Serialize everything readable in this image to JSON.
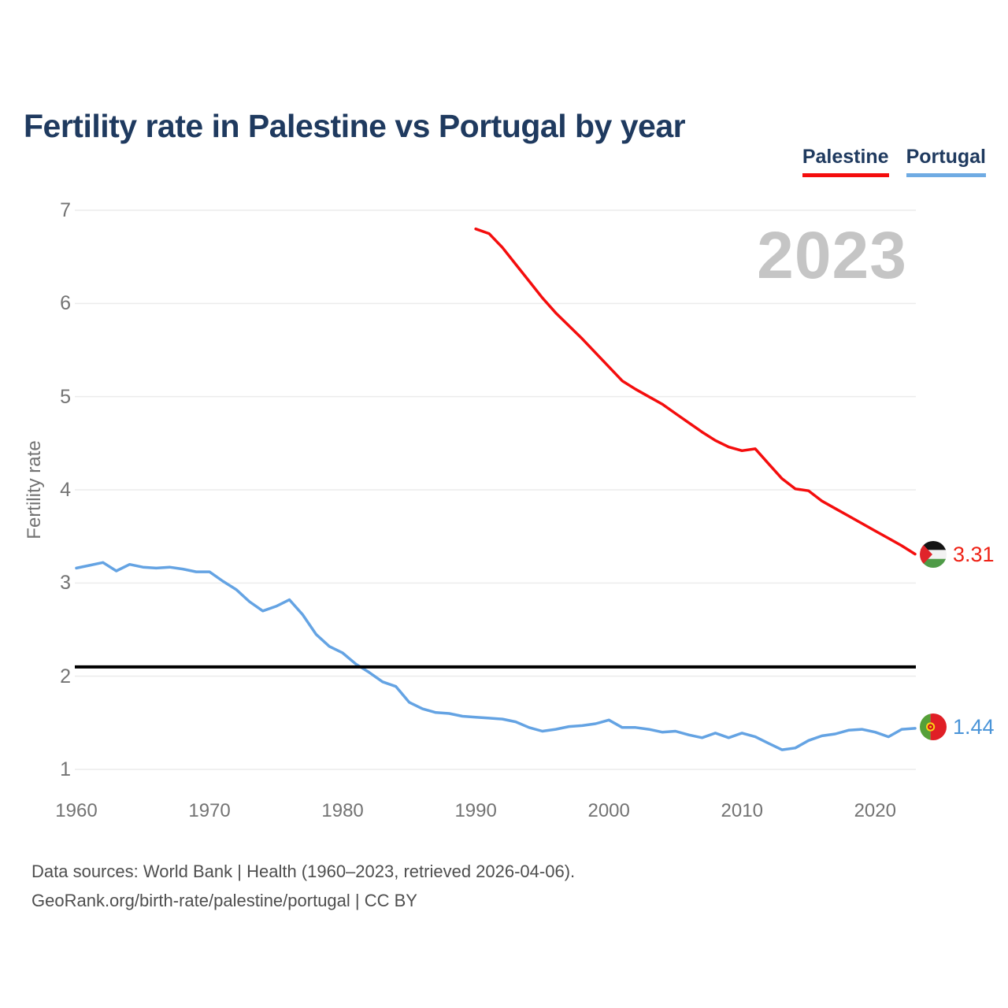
{
  "title": "Fertility rate in Palestine vs Portugal by year",
  "watermark": "2023",
  "legend": [
    {
      "label": "Palestine",
      "color": "#f40d0d"
    },
    {
      "label": "Portugal",
      "color": "#6fabe3"
    }
  ],
  "y_axis": {
    "label": "Fertility rate",
    "ticks": [
      1,
      2,
      3,
      4,
      5,
      6,
      7
    ]
  },
  "x_axis": {
    "ticks": [
      1960,
      1970,
      1980,
      1990,
      2000,
      2010,
      2020
    ]
  },
  "reference_line": {
    "value": 2.1,
    "color": "#000000"
  },
  "end_labels": [
    {
      "series": "Palestine",
      "value": "3.31",
      "color": "#ee2216",
      "flag": "palestine-flag-icon"
    },
    {
      "series": "Portugal",
      "value": "1.44",
      "color": "#4a94d8",
      "flag": "portugal-flag-icon"
    }
  ],
  "footer": {
    "line1": "Data sources: World Bank | Health (1960–2023, retrieved 2026-04-06).",
    "line2": "GeoRank.org/birth-rate/palestine/portugal | CC BY"
  },
  "chart_data": {
    "type": "line",
    "title": "Fertility rate in Palestine vs Portugal by year",
    "xlabel": "",
    "ylabel": "Fertility rate",
    "xlim": [
      1960,
      2023
    ],
    "ylim": [
      1,
      7
    ],
    "grid": "horizontal",
    "legend_position": "top-right",
    "annotations": {
      "watermark_year": "2023",
      "replacement_rate_line": 2.1
    },
    "series": [
      {
        "name": "Palestine",
        "color": "#f40d0d",
        "end_value_label": "3.31",
        "x": [
          1990,
          1991,
          1992,
          1993,
          1994,
          1995,
          1996,
          1997,
          1998,
          1999,
          2000,
          2001,
          2002,
          2003,
          2004,
          2005,
          2006,
          2007,
          2008,
          2009,
          2010,
          2011,
          2012,
          2013,
          2014,
          2015,
          2016,
          2017,
          2018,
          2019,
          2020,
          2021,
          2022,
          2023
        ],
        "values": [
          6.8,
          6.75,
          6.6,
          6.42,
          6.24,
          6.06,
          5.9,
          5.76,
          5.62,
          5.47,
          5.32,
          5.17,
          5.08,
          5.0,
          4.92,
          4.82,
          4.72,
          4.62,
          4.53,
          4.46,
          4.42,
          4.44,
          4.28,
          4.12,
          4.01,
          3.99,
          3.88,
          3.8,
          3.72,
          3.64,
          3.56,
          3.48,
          3.4,
          3.31
        ]
      },
      {
        "name": "Portugal",
        "color": "#64a3e3",
        "end_value_label": "1.44",
        "x": [
          1960,
          1961,
          1962,
          1963,
          1964,
          1965,
          1966,
          1967,
          1968,
          1969,
          1970,
          1971,
          1972,
          1973,
          1974,
          1975,
          1976,
          1977,
          1978,
          1979,
          1980,
          1981,
          1982,
          1983,
          1984,
          1985,
          1986,
          1987,
          1988,
          1989,
          1990,
          1991,
          1992,
          1993,
          1994,
          1995,
          1996,
          1997,
          1998,
          1999,
          2000,
          2001,
          2002,
          2003,
          2004,
          2005,
          2006,
          2007,
          2008,
          2009,
          2010,
          2011,
          2012,
          2013,
          2014,
          2015,
          2016,
          2017,
          2018,
          2019,
          2020,
          2021,
          2022,
          2023
        ],
        "values": [
          3.16,
          3.19,
          3.22,
          3.13,
          3.2,
          3.17,
          3.16,
          3.17,
          3.15,
          3.12,
          3.12,
          3.02,
          2.93,
          2.8,
          2.7,
          2.75,
          2.82,
          2.66,
          2.45,
          2.32,
          2.25,
          2.13,
          2.04,
          1.94,
          1.89,
          1.72,
          1.65,
          1.61,
          1.6,
          1.57,
          1.56,
          1.55,
          1.54,
          1.51,
          1.45,
          1.41,
          1.43,
          1.46,
          1.47,
          1.49,
          1.53,
          1.45,
          1.45,
          1.43,
          1.4,
          1.41,
          1.37,
          1.34,
          1.39,
          1.34,
          1.39,
          1.35,
          1.28,
          1.21,
          1.23,
          1.31,
          1.36,
          1.38,
          1.42,
          1.43,
          1.4,
          1.35,
          1.43,
          1.44
        ]
      }
    ]
  }
}
